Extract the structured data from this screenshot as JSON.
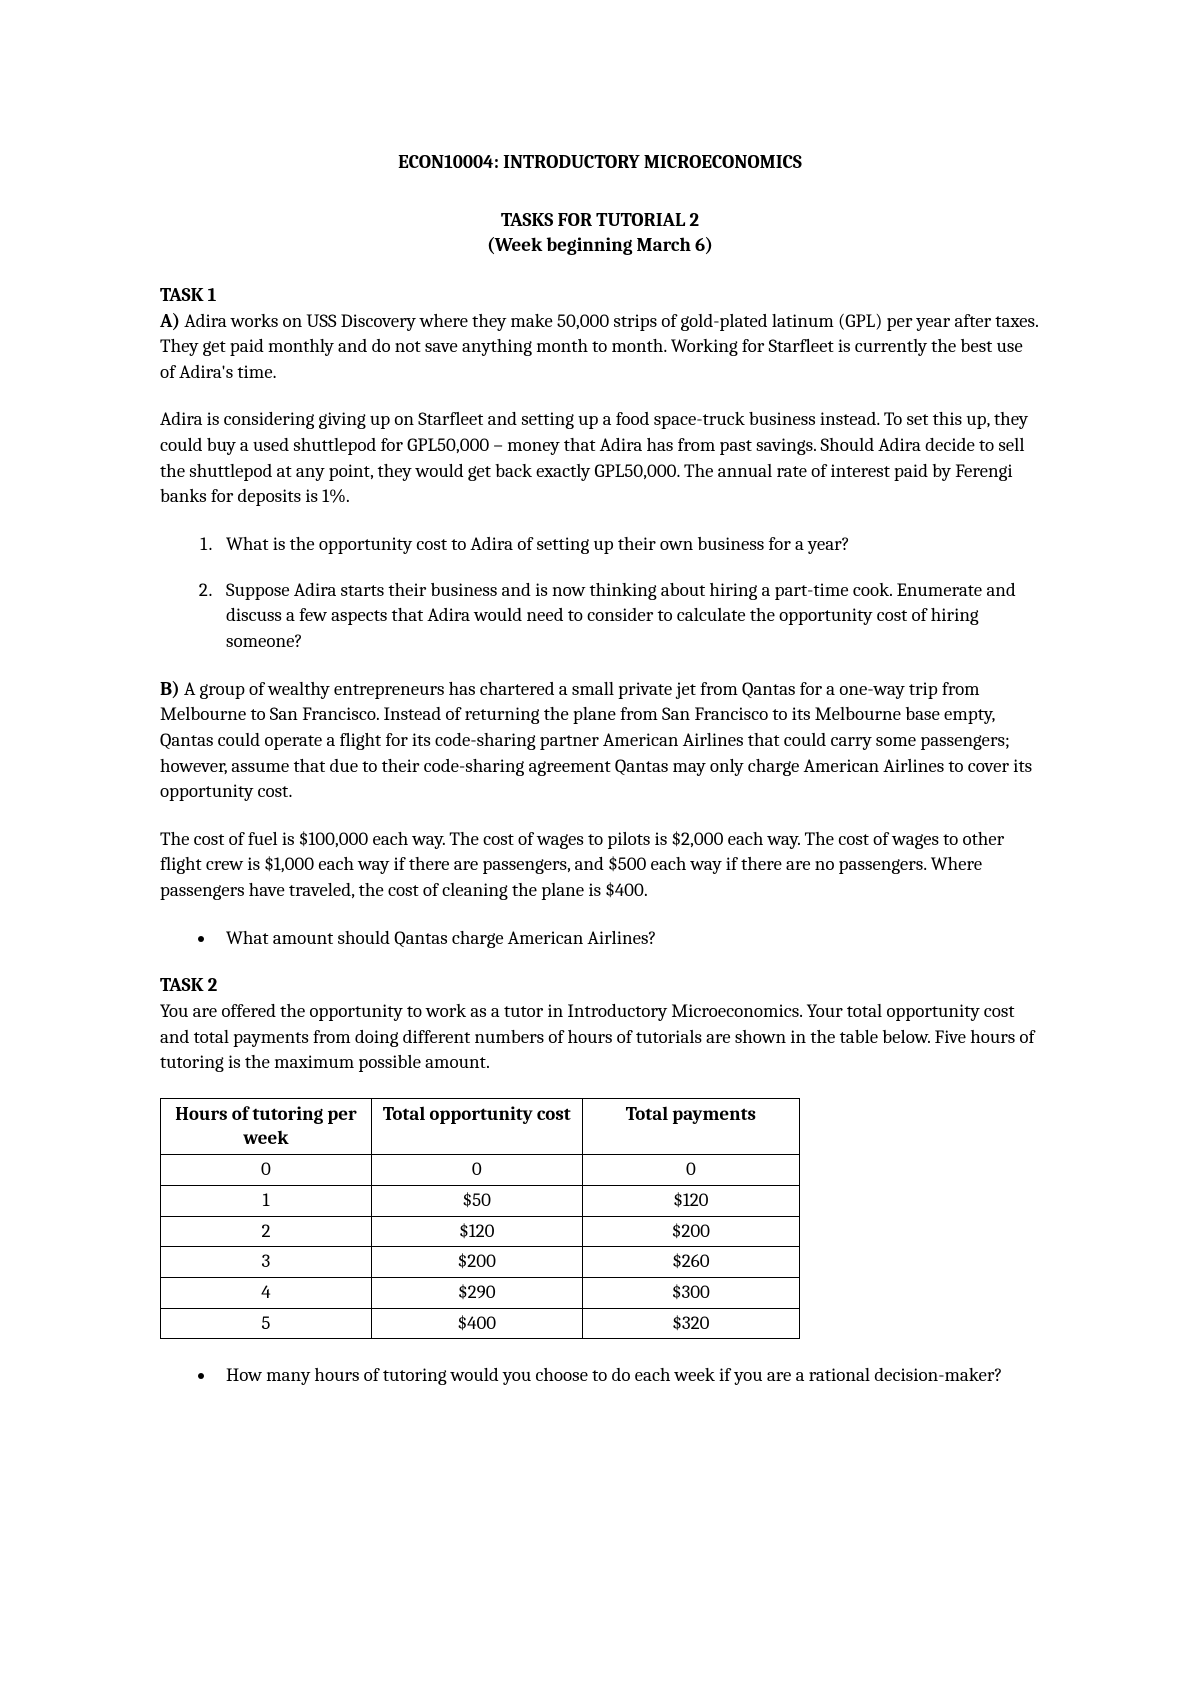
{
  "course_title": "ECON10004: INTRODUCTORY MICROECONOMICS",
  "subtitle_line1": "TASKS FOR TUTORIAL 2",
  "subtitle_line2": "(Week beginning March 6)",
  "task1": {
    "heading": "TASK 1",
    "a_label": "A) ",
    "a_para1": "Adira works on USS Discovery where they make 50,000 strips of gold-plated latinum (GPL) per year after taxes. They get paid monthly and do not save anything month to month.  Working for Starfleet is currently the best use of Adira's time.",
    "a_para2": "Adira is considering giving up on Starfleet and setting up a food space-truck business instead. To set this up, they could buy a used shuttlepod for GPL50,000 – money that Adira has from past savings. Should Adira decide to sell the shuttlepod at any point, they would get back exactly GPL50,000. The annual rate of interest paid by Ferengi banks for deposits is 1%.",
    "a_q1": "What is the opportunity cost to Adira of setting up their own business for a year?",
    "a_q2": "Suppose Adira starts their business and is now thinking about hiring a part-time cook.  Enumerate and discuss a few aspects that Adira would need to consider to calculate the opportunity cost of hiring someone?",
    "b_label": "B) ",
    "b_para1": "A group of wealthy entrepreneurs has chartered a small private jet from Qantas for a one-way trip from Melbourne to San Francisco. Instead of returning the plane from San Francisco to its Melbourne base empty, Qantas could operate a flight for its code-sharing partner American Airlines that could carry some passengers; however, assume that due to their code-sharing agreement Qantas may only charge American Airlines to cover its opportunity cost.",
    "b_para2": "The cost of fuel is $100,000 each way.  The cost of wages to pilots is $2,000 each way.  The cost of wages to other flight crew is $1,000 each way if there are passengers, and $500 each way if there are no passengers. Where passengers have traveled, the cost of cleaning the plane is $400.",
    "b_bullet": "What amount should Qantas charge American Airlines?"
  },
  "task2": {
    "heading": "TASK 2",
    "intro": "You are offered the opportunity to work as a tutor in Introductory Microeconomics. Your total opportunity cost and total payments from doing different numbers of hours of tutorials are shown in the table below.  Five hours of tutoring is the maximum possible amount.",
    "table": {
      "headers": [
        "Hours of tutoring per week",
        "Total opportunity cost",
        "Total payments"
      ],
      "rows": [
        [
          "0",
          "0",
          "0"
        ],
        [
          "1",
          "$50",
          "$120"
        ],
        [
          "2",
          "$120",
          "$200"
        ],
        [
          "3",
          "$200",
          "$260"
        ],
        [
          "4",
          "$290",
          "$300"
        ],
        [
          "5",
          "$400",
          "$320"
        ]
      ]
    },
    "bullet": "How many hours of tutoring would you choose to do each week if you are a rational decision-maker?"
  }
}
